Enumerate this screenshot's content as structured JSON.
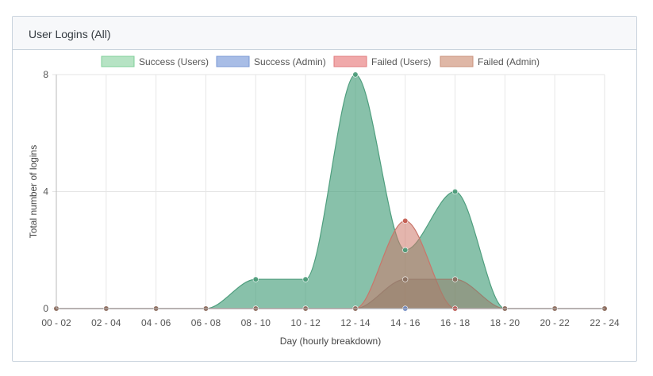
{
  "panel": {
    "title": "User Logins (All)"
  },
  "chart_data": {
    "type": "area",
    "categories": [
      "00 - 02",
      "02 - 04",
      "04 - 06",
      "06 - 08",
      "08 - 10",
      "10 - 12",
      "12 - 14",
      "14 - 16",
      "16 - 18",
      "18 - 20",
      "20 - 22",
      "22 - 24"
    ],
    "xlabel": "Day (hourly breakdown)",
    "ylabel": "Total number of logins",
    "ylim": [
      0,
      8
    ],
    "yticks": [
      "0",
      "4",
      "8"
    ],
    "grid": true,
    "legend_position": "top",
    "series": [
      {
        "name": "Success (Users)",
        "fill": "#b6e3c4",
        "stroke": "#7fcf99",
        "area": "rgba(72,160,125,0.65)",
        "line": "#4f9e7e",
        "point": "#4a9a78",
        "values": [
          0,
          0,
          0,
          0,
          1,
          1,
          8,
          2,
          4,
          0,
          0,
          0
        ]
      },
      {
        "name": "Success (Admin)",
        "fill": "#a8bde6",
        "stroke": "#7a98d4",
        "area": "rgba(110,140,200,0.55)",
        "line": "#6a86c2",
        "point": "#6a86c2",
        "values": [
          0,
          0,
          0,
          0,
          0,
          0,
          0,
          0,
          0,
          0,
          0,
          0
        ]
      },
      {
        "name": "Failed (Users)",
        "fill": "#f0a9aa",
        "stroke": "#e07a7c",
        "area": "rgba(205,120,105,0.55)",
        "line": "#c9756a",
        "point": "#c35a4e",
        "values": [
          0,
          0,
          0,
          0,
          0,
          0,
          0,
          3,
          0,
          0,
          0,
          0
        ]
      },
      {
        "name": "Failed (Admin)",
        "fill": "#dfb7a6",
        "stroke": "#c9917b",
        "area": "rgba(150,125,105,0.55)",
        "line": "#9a7e6e",
        "point": "#8a7060",
        "values": [
          0,
          0,
          0,
          0,
          0,
          0,
          0,
          1,
          1,
          0,
          0,
          0
        ]
      }
    ]
  }
}
